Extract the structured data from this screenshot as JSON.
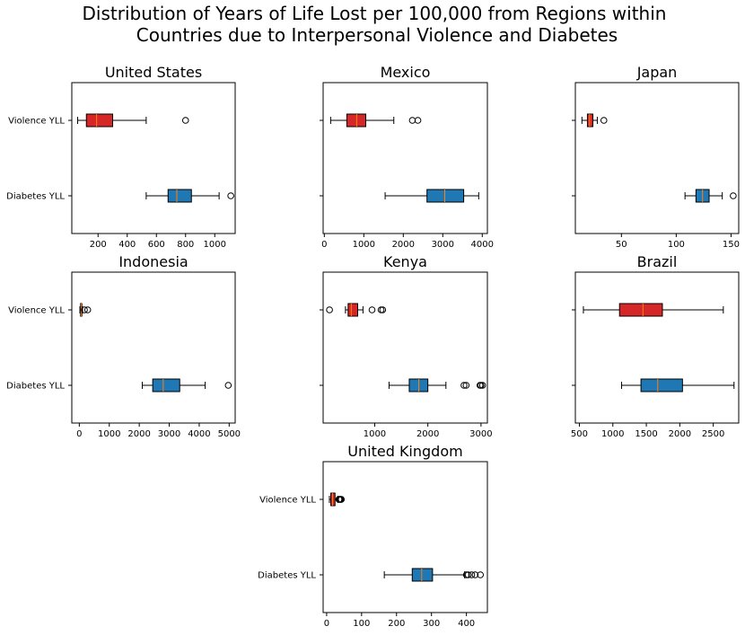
{
  "title": "Distribution of Years of Life Lost per 100,000 from Regions within\nCountries due to Interpersonal Violence and Diabetes",
  "colors": {
    "violence": "#d62728",
    "diabetes": "#1f77b4",
    "median": "#ff7f0e",
    "frame": "#000000"
  },
  "chart_data": [
    {
      "type": "boxplot",
      "title": "United States",
      "orientation": "horizontal",
      "categories": [
        "Violence YLL",
        "Diabetes YLL"
      ],
      "xlim": [
        20,
        1140
      ],
      "ticks": [
        200,
        400,
        600,
        800,
        1000
      ],
      "series": [
        {
          "name": "Violence YLL",
          "whisker_low": 60,
          "q1": 120,
          "median": 190,
          "q3": 300,
          "whisker_high": 530,
          "outliers": [
            800
          ]
        },
        {
          "name": "Diabetes YLL",
          "whisker_low": 530,
          "q1": 680,
          "median": 740,
          "q3": 840,
          "whisker_high": 1030,
          "outliers": [
            1110
          ]
        }
      ]
    },
    {
      "type": "boxplot",
      "title": "Mexico",
      "orientation": "horizontal",
      "categories": [
        "Violence YLL",
        "Diabetes YLL"
      ],
      "xlim": [
        -30,
        4130
      ],
      "ticks": [
        0,
        1000,
        2000,
        3000,
        4000
      ],
      "series": [
        {
          "name": "Violence YLL",
          "whisker_low": 160,
          "q1": 570,
          "median": 820,
          "q3": 1050,
          "whisker_high": 1760,
          "outliers": [
            2230,
            2370
          ]
        },
        {
          "name": "Diabetes YLL",
          "whisker_low": 1540,
          "q1": 2600,
          "median": 3050,
          "q3": 3530,
          "whisker_high": 3910,
          "outliers": []
        }
      ]
    },
    {
      "type": "boxplot",
      "title": "Japan",
      "orientation": "horizontal",
      "categories": [
        "Violence YLL",
        "Diabetes YLL"
      ],
      "xlim": [
        8,
        157
      ],
      "ticks": [
        50,
        100,
        150
      ],
      "series": [
        {
          "name": "Violence YLL",
          "whisker_low": 14,
          "q1": 19,
          "median": 21,
          "q3": 24,
          "whisker_high": 28,
          "outliers": [
            34
          ]
        },
        {
          "name": "Diabetes YLL",
          "whisker_low": 108,
          "q1": 118,
          "median": 124,
          "q3": 130,
          "whisker_high": 142,
          "outliers": [
            152
          ]
        }
      ]
    },
    {
      "type": "boxplot",
      "title": "Indonesia",
      "orientation": "horizontal",
      "categories": [
        "Violence YLL",
        "Diabetes YLL"
      ],
      "xlim": [
        -250,
        5200
      ],
      "ticks": [
        0,
        1000,
        2000,
        3000,
        4000,
        5000
      ],
      "series": [
        {
          "name": "Violence YLL",
          "whisker_low": 20,
          "q1": 40,
          "median": 60,
          "q3": 80,
          "whisker_high": 110,
          "outliers": [
            170,
            280
          ]
        },
        {
          "name": "Diabetes YLL",
          "whisker_low": 2100,
          "q1": 2450,
          "median": 2800,
          "q3": 3350,
          "whisker_high": 4200,
          "outliers": [
            4970
          ]
        }
      ]
    },
    {
      "type": "boxplot",
      "title": "Kenya",
      "orientation": "horizontal",
      "categories": [
        "Violence YLL",
        "Diabetes YLL"
      ],
      "xlim": [
        30,
        3120
      ],
      "ticks": [
        1000,
        2000,
        3000
      ],
      "series": [
        {
          "name": "Violence YLL",
          "whisker_low": 450,
          "q1": 500,
          "median": 560,
          "q3": 680,
          "whisker_high": 780,
          "outliers": [
            150,
            950,
            1120,
            1150
          ]
        },
        {
          "name": "Diabetes YLL",
          "whisker_low": 1270,
          "q1": 1650,
          "median": 1830,
          "q3": 2000,
          "whisker_high": 2340,
          "outliers": [
            2680,
            2720,
            2980,
            3000,
            3030
          ]
        }
      ]
    },
    {
      "type": "boxplot",
      "title": "Brazil",
      "orientation": "horizontal",
      "categories": [
        "Violence YLL",
        "Diabetes YLL"
      ],
      "xlim": [
        440,
        2880
      ],
      "ticks": [
        500,
        1000,
        1500,
        2000,
        2500
      ],
      "series": [
        {
          "name": "Violence YLL",
          "whisker_low": 560,
          "q1": 1100,
          "median": 1450,
          "q3": 1740,
          "whisker_high": 2650,
          "outliers": []
        },
        {
          "name": "Diabetes YLL",
          "whisker_low": 1130,
          "q1": 1420,
          "median": 1670,
          "q3": 2040,
          "whisker_high": 2810,
          "outliers": []
        }
      ]
    },
    {
      "type": "boxplot",
      "title": "United Kingdom",
      "orientation": "horizontal",
      "categories": [
        "Violence YLL",
        "Diabetes YLL"
      ],
      "xlim": [
        -10,
        460
      ],
      "ticks": [
        0,
        100,
        200,
        300,
        400
      ],
      "series": [
        {
          "name": "Violence YLL",
          "whisker_low": 8,
          "q1": 12,
          "median": 17,
          "q3": 24,
          "whisker_high": 32,
          "outliers": [
            35,
            37,
            38,
            40,
            42
          ]
        },
        {
          "name": "Diabetes YLL",
          "whisker_low": 165,
          "q1": 245,
          "median": 272,
          "q3": 303,
          "whisker_high": 395,
          "outliers": [
            400,
            405,
            415,
            425,
            440
          ]
        }
      ]
    }
  ]
}
